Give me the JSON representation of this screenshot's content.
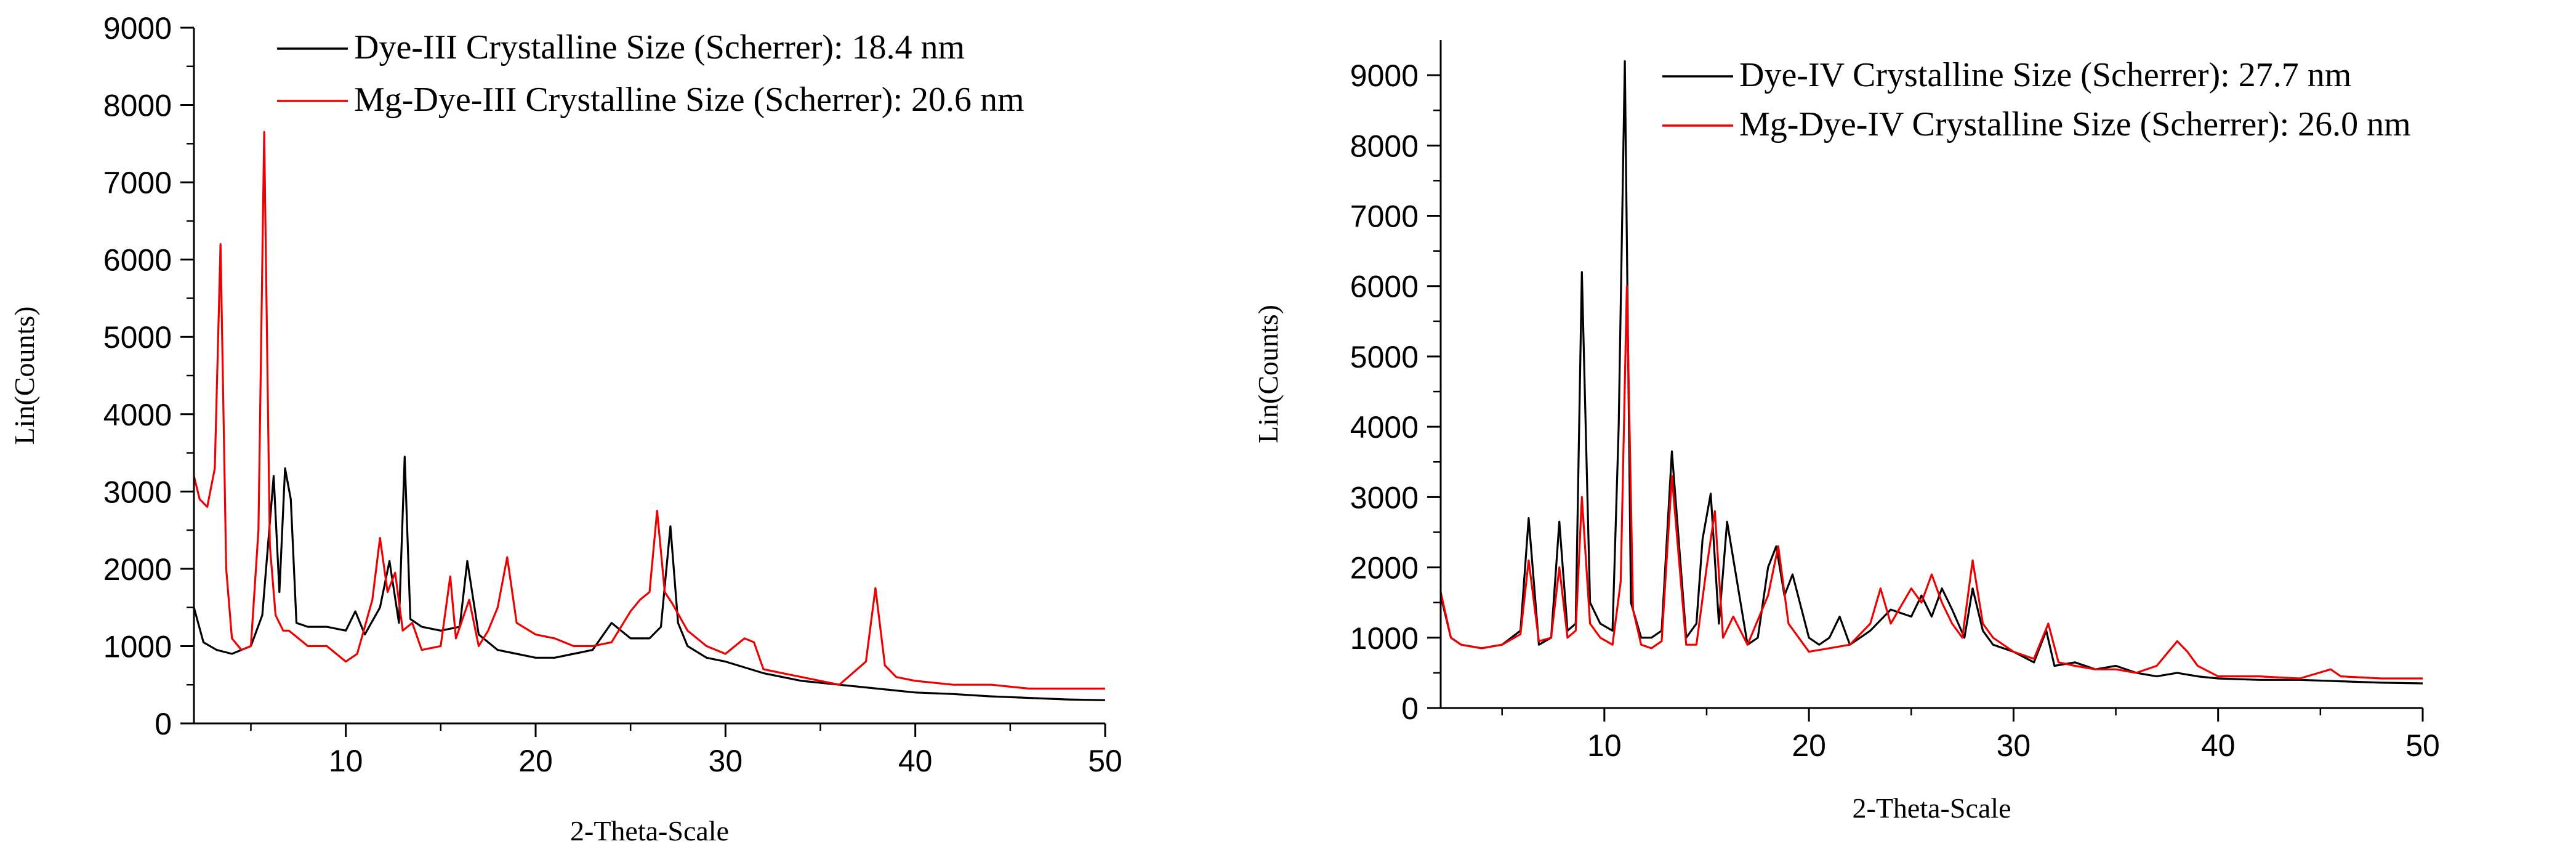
{
  "chart_data": [
    {
      "type": "line",
      "title": "",
      "xlabel": "2-Theta-Scale",
      "ylabel": "Lin(Counts)",
      "xlim": [
        2,
        50
      ],
      "ylim": [
        0,
        9000
      ],
      "xticks": [
        10,
        20,
        30,
        40,
        50
      ],
      "yticks": [
        0,
        1000,
        2000,
        3000,
        4000,
        5000,
        6000,
        7000,
        8000,
        9000
      ],
      "legend_position": "top-right",
      "series": [
        {
          "name": "Dye-III Crystalline Size (Scherrer): 18.4 nm",
          "color": "#000000",
          "x": [
            2,
            2.5,
            3.2,
            4,
            5,
            5.6,
            6.2,
            6.5,
            6.8,
            7.1,
            7.4,
            8,
            9,
            10,
            10.5,
            11,
            11.8,
            12.3,
            12.8,
            13.1,
            13.4,
            14,
            15,
            16,
            16.4,
            17,
            18,
            19,
            20,
            21,
            22,
            23,
            24,
            25,
            26,
            26.6,
            27.1,
            27.5,
            28,
            29,
            30,
            32,
            34,
            36,
            38,
            40,
            42,
            44,
            46,
            48,
            50
          ],
          "values": [
            1500,
            1050,
            950,
            900,
            1000,
            1400,
            3200,
            1700,
            3300,
            2900,
            1300,
            1250,
            1250,
            1200,
            1450,
            1150,
            1500,
            2100,
            1300,
            3450,
            1350,
            1250,
            1200,
            1250,
            2100,
            1150,
            950,
            900,
            850,
            850,
            900,
            950,
            1300,
            1100,
            1100,
            1250,
            2550,
            1300,
            1000,
            850,
            800,
            650,
            550,
            500,
            450,
            400,
            380,
            350,
            330,
            310,
            300
          ]
        },
        {
          "name": "Mg-Dye-III Crystalline Size (Scherrer): 20.6 nm",
          "color": "#ee0000",
          "x": [
            2,
            2.3,
            2.7,
            3.1,
            3.4,
            3.7,
            4,
            4.5,
            5,
            5.4,
            5.7,
            6.0,
            6.3,
            6.7,
            7,
            8,
            9,
            10,
            10.6,
            11.4,
            11.8,
            12.2,
            12.6,
            13,
            13.5,
            14,
            15,
            15.5,
            15.8,
            16.5,
            17,
            17.5,
            18,
            18.5,
            19,
            20,
            21,
            22,
            23,
            24,
            25,
            25.5,
            26,
            26.4,
            26.8,
            27.2,
            28,
            29,
            30,
            31,
            31.5,
            32,
            34,
            36,
            37.4,
            37.9,
            38.4,
            39,
            40,
            42,
            44,
            46,
            48,
            50
          ],
          "values": [
            3200,
            2900,
            2800,
            3300,
            6200,
            2000,
            1100,
            950,
            1000,
            2500,
            7650,
            2300,
            1400,
            1200,
            1200,
            1000,
            1000,
            800,
            900,
            1600,
            2400,
            1700,
            1950,
            1200,
            1300,
            950,
            1000,
            1900,
            1100,
            1600,
            1000,
            1200,
            1500,
            2150,
            1300,
            1150,
            1100,
            1000,
            1000,
            1050,
            1450,
            1600,
            1700,
            2750,
            1700,
            1550,
            1200,
            1000,
            900,
            1100,
            1050,
            700,
            600,
            500,
            800,
            1750,
            750,
            600,
            550,
            500,
            500,
            450,
            450,
            450
          ]
        }
      ]
    },
    {
      "type": "line",
      "title": "",
      "xlabel": "2-Theta-Scale",
      "ylabel": "Lin(Counts)",
      "xlim": [
        2,
        50
      ],
      "ylim": [
        0,
        9500
      ],
      "xticks": [
        10,
        20,
        30,
        40,
        50
      ],
      "yticks": [
        0,
        1000,
        2000,
        3000,
        4000,
        5000,
        6000,
        7000,
        8000,
        9000
      ],
      "legend_position": "top-right",
      "series": [
        {
          "name": "Dye-IV Crystalline Size (Scherrer): 27.7 nm",
          "color": "#000000",
          "x": [
            2,
            2.5,
            3,
            4,
            5,
            5.9,
            6.3,
            6.8,
            7.4,
            7.8,
            8.2,
            8.6,
            8.9,
            9.3,
            9.8,
            10.4,
            10.7,
            11.0,
            11.3,
            11.8,
            12.3,
            12.8,
            13.3,
            14,
            14.5,
            14.8,
            15.2,
            15.6,
            16,
            17,
            17.5,
            18,
            18.4,
            18.8,
            19.2,
            20,
            20.5,
            21,
            21.5,
            22,
            23,
            24,
            25,
            25.5,
            26,
            26.5,
            27,
            27.6,
            28,
            28.5,
            29,
            30,
            31,
            31.6,
            32,
            33,
            34,
            35,
            36,
            37,
            38,
            39,
            40,
            42,
            44,
            46,
            48,
            50
          ],
          "values": [
            1600,
            1000,
            900,
            850,
            900,
            1100,
            2700,
            900,
            1000,
            2650,
            1100,
            1200,
            6200,
            1500,
            1200,
            1100,
            4000,
            9200,
            1500,
            1000,
            1000,
            1100,
            3650,
            1000,
            1200,
            2400,
            3050,
            1200,
            2650,
            900,
            1000,
            2000,
            2300,
            1600,
            1900,
            1000,
            900,
            1000,
            1300,
            900,
            1100,
            1400,
            1300,
            1600,
            1300,
            1700,
            1400,
            1000,
            1700,
            1100,
            900,
            800,
            650,
            1100,
            600,
            650,
            550,
            600,
            500,
            450,
            500,
            450,
            420,
            400,
            400,
            380,
            360,
            350
          ]
        },
        {
          "name": "Mg-Dye-IV Crystalline Size (Scherrer): 26.0 nm",
          "color": "#ee0000",
          "x": [
            2,
            2.5,
            3,
            4,
            5,
            5.9,
            6.3,
            6.8,
            7.4,
            7.8,
            8.2,
            8.6,
            8.9,
            9.3,
            9.8,
            10.4,
            10.8,
            11.1,
            11.4,
            11.8,
            12.3,
            12.8,
            13.3,
            14,
            14.5,
            15,
            15.4,
            15.8,
            16.3,
            17,
            18,
            18.5,
            19,
            19.5,
            20,
            21,
            22,
            23,
            23.5,
            24,
            25,
            25.5,
            26,
            26.5,
            27,
            27.5,
            28,
            28.5,
            29,
            30,
            31,
            31.7,
            32.2,
            33,
            34,
            35,
            36,
            37,
            38,
            38.5,
            39,
            40,
            42,
            44,
            45.5,
            46,
            48,
            50
          ],
          "values": [
            1650,
            1000,
            900,
            850,
            900,
            1050,
            2100,
            950,
            1000,
            2000,
            1000,
            1100,
            3000,
            1200,
            1000,
            900,
            1800,
            6000,
            1400,
            900,
            850,
            950,
            3300,
            900,
            900,
            2000,
            2800,
            1000,
            1300,
            900,
            1600,
            2300,
            1200,
            1000,
            800,
            850,
            900,
            1200,
            1700,
            1200,
            1700,
            1500,
            1900,
            1500,
            1200,
            1000,
            2100,
            1200,
            1000,
            800,
            700,
            1200,
            650,
            600,
            550,
            550,
            500,
            600,
            950,
            800,
            600,
            450,
            450,
            420,
            550,
            450,
            420,
            420
          ]
        }
      ]
    }
  ]
}
